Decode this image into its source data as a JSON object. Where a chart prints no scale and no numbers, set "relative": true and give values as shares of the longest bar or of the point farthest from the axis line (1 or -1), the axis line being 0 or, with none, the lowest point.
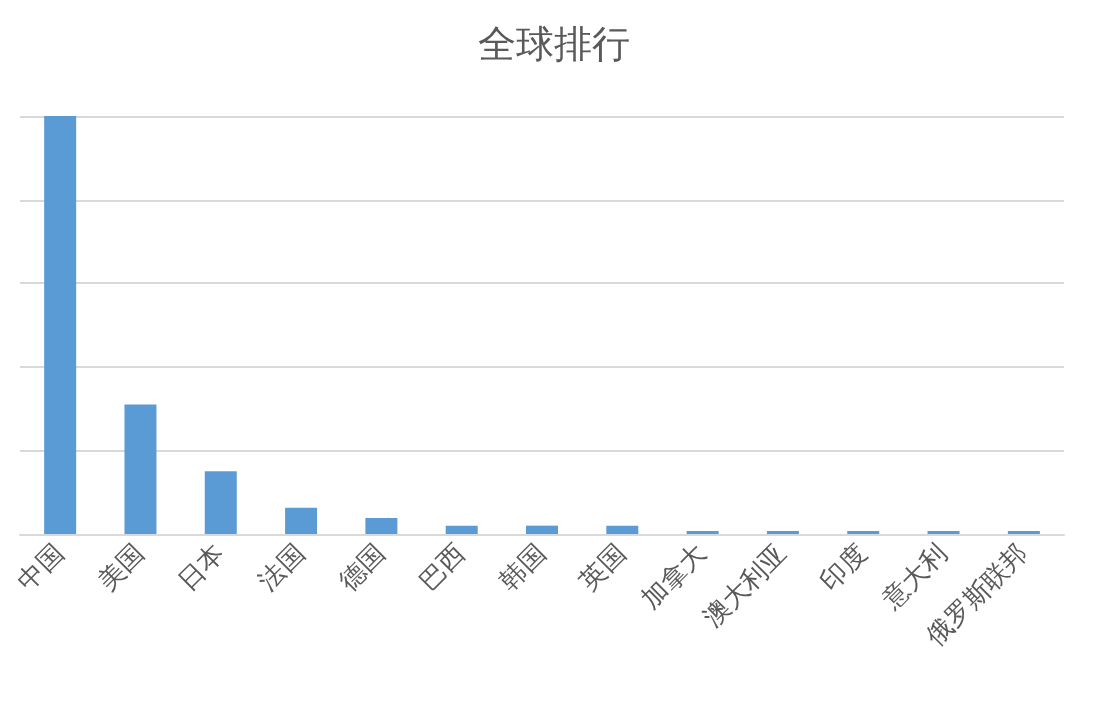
{
  "chart_data": {
    "type": "bar",
    "title": "全球排行",
    "relative": true,
    "grid": "y",
    "color": "#5b9bd5",
    "categories": [
      "中国",
      "美国",
      "日本",
      "法国",
      "德国",
      "巴西",
      "韩国",
      "英国",
      "加拿大",
      "澳大利亚",
      "印度",
      "意大利",
      "俄罗斯联邦"
    ],
    "values": [
      1,
      0.31,
      0.15,
      0.063,
      0.038,
      0.02,
      0.02,
      0.02,
      0.007,
      0.007,
      0.007,
      0.007,
      0.007
    ]
  }
}
